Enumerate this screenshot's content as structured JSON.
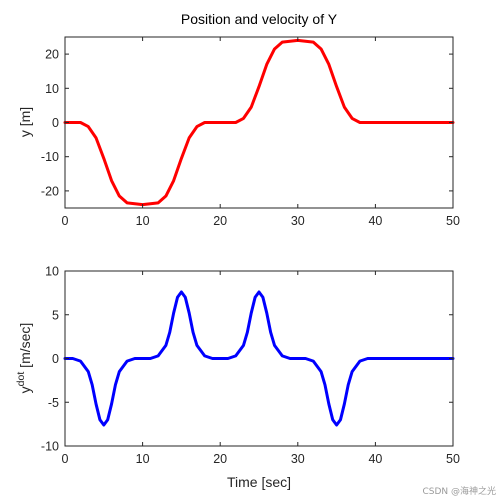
{
  "watermark": "CSDN @海神之光",
  "colors": {
    "position": "#ff0000",
    "velocity": "#0000ff",
    "axis": "#262626"
  },
  "chart_data": [
    {
      "type": "line",
      "title": "Position and velocity of Y",
      "xlabel": "",
      "ylabel": "y [m]",
      "xlim": [
        0,
        50
      ],
      "ylim": [
        -25,
        25
      ],
      "xticks": [
        "0",
        "10",
        "20",
        "30",
        "40",
        "50"
      ],
      "yticks": [
        "-20",
        "-10",
        "0",
        "10",
        "20"
      ],
      "grid": false,
      "series": [
        {
          "color": "#ff0000",
          "x": [
            0,
            2,
            3,
            4,
            5,
            6,
            7,
            8,
            10,
            12,
            13,
            14,
            15,
            16,
            17,
            18,
            20,
            22,
            23,
            24,
            25,
            26,
            27,
            28,
            30,
            32,
            33,
            34,
            35,
            36,
            37,
            38,
            40,
            50
          ],
          "y": [
            0,
            0,
            -1.2,
            -4.5,
            -10.5,
            -17,
            -21.5,
            -23.5,
            -24,
            -23.5,
            -21.5,
            -17,
            -10.5,
            -4.5,
            -1.2,
            0,
            0,
            0,
            1.2,
            4.5,
            10.5,
            17,
            21.5,
            23.5,
            24,
            23.5,
            21.5,
            17,
            10.5,
            4.5,
            1.2,
            0,
            0,
            0
          ]
        }
      ]
    },
    {
      "type": "line",
      "title": "",
      "xlabel": "Time [sec]",
      "ylabel": "y^dot [m/sec]",
      "ylabel_base": "y",
      "ylabel_sup": "dot",
      "ylabel_unit": "[m/sec]",
      "xlim": [
        0,
        50
      ],
      "ylim": [
        -10,
        10
      ],
      "xticks": [
        "0",
        "10",
        "20",
        "30",
        "40",
        "50"
      ],
      "yticks": [
        "-10",
        "-5",
        "0",
        "5",
        "10"
      ],
      "grid": false,
      "series": [
        {
          "color": "#0000ff",
          "x": [
            0,
            1,
            2,
            3,
            3.5,
            4,
            4.5,
            5,
            5.5,
            6,
            6.5,
            7,
            8,
            9,
            11,
            12,
            13,
            13.5,
            14,
            14.5,
            15,
            15.5,
            16,
            16.5,
            17,
            18,
            19,
            21,
            22,
            23,
            23.5,
            24,
            24.5,
            25,
            25.5,
            26,
            26.5,
            27,
            28,
            29,
            31,
            32,
            33,
            33.5,
            34,
            34.5,
            35,
            35.5,
            36,
            36.5,
            37,
            38,
            39,
            50
          ],
          "y": [
            0,
            0,
            -0.3,
            -1.5,
            -3.0,
            -5.2,
            -7.0,
            -7.6,
            -7.0,
            -5.2,
            -3.0,
            -1.5,
            -0.3,
            0,
            0,
            0.3,
            1.5,
            3.0,
            5.2,
            7.0,
            7.6,
            7.0,
            5.2,
            3.0,
            1.5,
            0.3,
            0,
            0,
            0.3,
            1.5,
            3.0,
            5.2,
            7.0,
            7.6,
            7.0,
            5.2,
            3.0,
            1.5,
            0.3,
            0,
            0,
            -0.3,
            -1.5,
            -3.0,
            -5.2,
            -7.0,
            -7.6,
            -7.0,
            -5.2,
            -3.0,
            -1.5,
            -0.3,
            0,
            0
          ]
        }
      ]
    }
  ]
}
